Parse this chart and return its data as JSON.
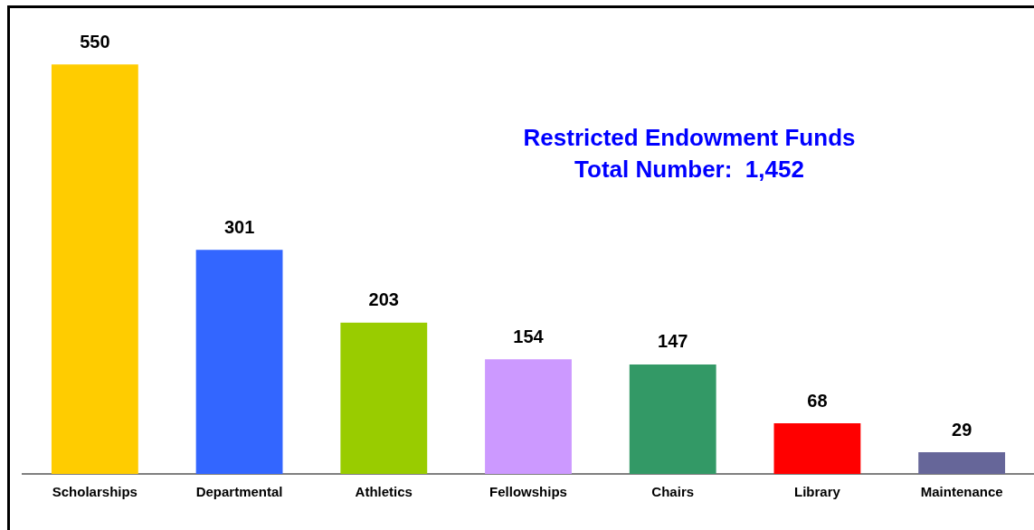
{
  "chart_data": {
    "type": "bar",
    "title": "Restricted Endowment Funds",
    "subtitle": "Total Number:  1,452",
    "categories": [
      "Scholarships",
      "Departmental",
      "Athletics",
      "Fellowships",
      "Chairs",
      "Library",
      "Maintenance"
    ],
    "values": [
      550,
      301,
      203,
      154,
      147,
      68,
      29
    ],
    "colors": [
      "#ffcc00",
      "#3366ff",
      "#99cc00",
      "#cc99ff",
      "#339966",
      "#ff0000",
      "#666699"
    ],
    "data_labels": true,
    "grid": false,
    "legend": false
  }
}
